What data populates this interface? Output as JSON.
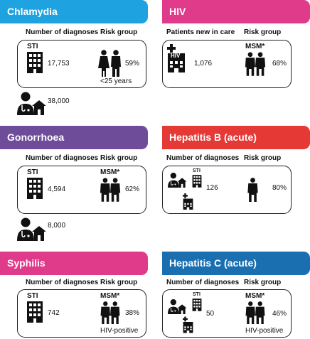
{
  "colors": {
    "chlamydia": "#1ea3e0",
    "hiv": "#e03a8a",
    "gonorrhoea": "#6f4c9a",
    "hepatitis_b": "#e53935",
    "syphilis": "#e03a8a",
    "hepatitis_c": "#1a6fb0"
  },
  "icons": [
    "building-icon",
    "hospital-icon",
    "doctor-home-icon",
    "couple-icon",
    "man-pair-icon",
    "person-icon"
  ],
  "chlamydia": {
    "title": "Chlamydia",
    "col1": "Number of diagnoses",
    "col2": "Risk group",
    "icon_label": "STI",
    "count": "17,753",
    "percent": "59%",
    "note": "<25 years",
    "extra_count": "38,000"
  },
  "hiv": {
    "title": "HIV",
    "col1": "Patients new in care",
    "col2": "Risk group",
    "icon_label": "HIV",
    "risk_label": "MSM*",
    "count": "1,076",
    "percent": "68%"
  },
  "gonorrhoea": {
    "title": "Gonorrhoea",
    "col1": "Number of diagnoses",
    "col2": "Risk group",
    "icon_label": "STI",
    "risk_label": "MSM*",
    "count": "4,594",
    "percent": "62%",
    "extra_count": "8,000"
  },
  "hepatitis_b": {
    "title": "Hepatitis B (acute)",
    "col1": "Number of diagnoses",
    "col2": "Risk group",
    "icon_label": "STI",
    "count": "126",
    "percent": "80%"
  },
  "syphilis": {
    "title": "Syphilis",
    "col1": "Number of diagnoses",
    "col2": "Risk group",
    "icon_label": "STI",
    "risk_label": "MSM*",
    "count": "742",
    "percent": "38%",
    "note": "HIV-positive"
  },
  "hepatitis_c": {
    "title": "Hepatitis C (acute)",
    "col1": "Number of diagnoses",
    "col2": "Risk group",
    "icon_label": "STI",
    "risk_label": "MSM*",
    "count": "50",
    "percent": "46%",
    "note": "HIV-positive"
  }
}
